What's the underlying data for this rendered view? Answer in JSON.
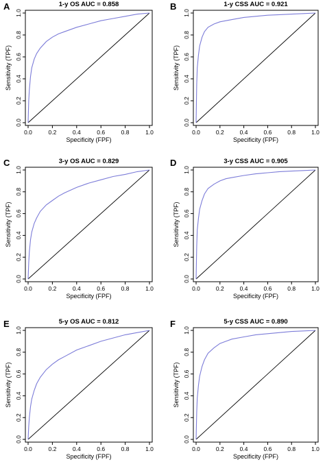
{
  "figure": {
    "curve_color": "#7b7bd8",
    "line_color": "#000000"
  },
  "chart_data": [
    {
      "type": "line",
      "panel": "A",
      "title": "1-y OS AUC = 0.858",
      "xlabel": "Specificity (FPF)",
      "ylabel": "Sensitivity (TPF)",
      "xlim": [
        0,
        1
      ],
      "ylim": [
        0,
        1
      ],
      "xticks": [
        "0.0",
        "0.2",
        "0.4",
        "0.6",
        "0.8",
        "1.0"
      ],
      "yticks": [
        "0.0",
        "0.2",
        "0.4",
        "0.6",
        "0.8",
        "1.0"
      ],
      "grid": false,
      "x": [
        0,
        0.005,
        0.01,
        0.02,
        0.03,
        0.05,
        0.07,
        0.1,
        0.15,
        0.2,
        0.25,
        0.3,
        0.4,
        0.5,
        0.6,
        0.7,
        0.8,
        0.9,
        1.0
      ],
      "y": [
        0,
        0.2,
        0.3,
        0.42,
        0.5,
        0.58,
        0.63,
        0.68,
        0.74,
        0.78,
        0.81,
        0.83,
        0.87,
        0.9,
        0.93,
        0.95,
        0.97,
        0.99,
        1.0
      ],
      "reference_line": [
        [
          0,
          0
        ],
        [
          1,
          1
        ]
      ]
    },
    {
      "type": "line",
      "panel": "B",
      "title": "1-y CSS AUC = 0.921",
      "xlabel": "Specificity (FPF)",
      "ylabel": "Sensitivity (TPF)",
      "xlim": [
        0,
        1
      ],
      "ylim": [
        0,
        1
      ],
      "xticks": [
        "0.0",
        "0.2",
        "0.4",
        "0.6",
        "0.8",
        "1.0"
      ],
      "yticks": [
        "0.0",
        "0.2",
        "0.4",
        "0.6",
        "0.8",
        "1.0"
      ],
      "grid": false,
      "x": [
        0,
        0.005,
        0.01,
        0.02,
        0.03,
        0.05,
        0.07,
        0.1,
        0.15,
        0.2,
        0.25,
        0.3,
        0.4,
        0.5,
        0.6,
        0.7,
        0.8,
        0.9,
        1.0
      ],
      "y": [
        0,
        0.35,
        0.5,
        0.62,
        0.7,
        0.78,
        0.83,
        0.87,
        0.9,
        0.92,
        0.93,
        0.94,
        0.96,
        0.97,
        0.98,
        0.985,
        0.99,
        0.995,
        1.0
      ],
      "reference_line": [
        [
          0,
          0
        ],
        [
          1,
          1
        ]
      ]
    },
    {
      "type": "line",
      "panel": "C",
      "title": "3-y OS AUC = 0.829",
      "xlabel": "Specificity (FPF)",
      "ylabel": "Sensitivity (TPF)",
      "xlim": [
        0,
        1
      ],
      "ylim": [
        0,
        1
      ],
      "xticks": [
        "0.0",
        "0.2",
        "0.4",
        "0.6",
        "0.8",
        "1.0"
      ],
      "yticks": [
        "0.0",
        "0.2",
        "0.4",
        "0.6",
        "0.8",
        "1.0"
      ],
      "grid": false,
      "x": [
        0,
        0.005,
        0.01,
        0.02,
        0.03,
        0.05,
        0.07,
        0.1,
        0.15,
        0.2,
        0.25,
        0.3,
        0.4,
        0.5,
        0.6,
        0.7,
        0.8,
        0.9,
        1.0
      ],
      "y": [
        0,
        0.15,
        0.25,
        0.36,
        0.43,
        0.51,
        0.56,
        0.62,
        0.68,
        0.72,
        0.76,
        0.79,
        0.84,
        0.88,
        0.91,
        0.94,
        0.96,
        0.985,
        1.0
      ],
      "reference_line": [
        [
          0,
          0
        ],
        [
          1,
          1
        ]
      ]
    },
    {
      "type": "line",
      "panel": "D",
      "title": "3-y CSS AUC = 0.905",
      "xlabel": "Specificity (FPF)",
      "ylabel": "Sensitivity (TPF)",
      "xlim": [
        0,
        1
      ],
      "ylim": [
        0,
        1
      ],
      "xticks": [
        "0.0",
        "0.2",
        "0.4",
        "0.6",
        "0.8",
        "1.0"
      ],
      "yticks": [
        "0.0",
        "0.2",
        "0.4",
        "0.6",
        "0.8",
        "1.0"
      ],
      "grid": false,
      "x": [
        0,
        0.005,
        0.01,
        0.02,
        0.03,
        0.05,
        0.07,
        0.1,
        0.15,
        0.2,
        0.25,
        0.3,
        0.4,
        0.5,
        0.6,
        0.7,
        0.8,
        0.9,
        1.0
      ],
      "y": [
        0,
        0.3,
        0.45,
        0.56,
        0.64,
        0.72,
        0.78,
        0.83,
        0.87,
        0.9,
        0.92,
        0.93,
        0.95,
        0.965,
        0.975,
        0.985,
        0.99,
        0.995,
        1.0
      ],
      "reference_line": [
        [
          0,
          0
        ],
        [
          1,
          1
        ]
      ]
    },
    {
      "type": "line",
      "panel": "E",
      "title": "5-y OS AUC = 0.812",
      "xlabel": "Specificity (FPF)",
      "ylabel": "Sensitivity (TPF)",
      "xlim": [
        0,
        1
      ],
      "ylim": [
        0,
        1
      ],
      "xticks": [
        "0.0",
        "0.2",
        "0.4",
        "0.6",
        "0.8",
        "1.0"
      ],
      "yticks": [
        "0.0",
        "0.2",
        "0.4",
        "0.6",
        "0.8",
        "1.0"
      ],
      "grid": false,
      "x": [
        0,
        0.005,
        0.01,
        0.02,
        0.03,
        0.05,
        0.07,
        0.1,
        0.15,
        0.2,
        0.25,
        0.3,
        0.4,
        0.5,
        0.6,
        0.7,
        0.8,
        0.9,
        1.0
      ],
      "y": [
        0,
        0.12,
        0.2,
        0.3,
        0.37,
        0.45,
        0.51,
        0.57,
        0.64,
        0.69,
        0.73,
        0.76,
        0.82,
        0.86,
        0.9,
        0.93,
        0.96,
        0.98,
        1.0
      ],
      "reference_line": [
        [
          0,
          0
        ],
        [
          1,
          1
        ]
      ]
    },
    {
      "type": "line",
      "panel": "F",
      "title": "5-y CSS AUC = 0.890",
      "xlabel": "Specificity (FPF)",
      "ylabel": "Sensitivity (TPF)",
      "xlim": [
        0,
        1
      ],
      "ylim": [
        0,
        1
      ],
      "xticks": [
        "0.0",
        "0.2",
        "0.4",
        "0.6",
        "0.8",
        "1.0"
      ],
      "yticks": [
        "0.0",
        "0.2",
        "0.4",
        "0.6",
        "0.8",
        "1.0"
      ],
      "grid": false,
      "x": [
        0,
        0.005,
        0.01,
        0.02,
        0.03,
        0.05,
        0.07,
        0.1,
        0.15,
        0.2,
        0.25,
        0.3,
        0.4,
        0.5,
        0.6,
        0.7,
        0.8,
        0.9,
        1.0
      ],
      "y": [
        0,
        0.25,
        0.38,
        0.5,
        0.58,
        0.67,
        0.73,
        0.79,
        0.84,
        0.88,
        0.9,
        0.92,
        0.94,
        0.96,
        0.97,
        0.98,
        0.99,
        0.995,
        1.0
      ],
      "reference_line": [
        [
          0,
          0
        ],
        [
          1,
          1
        ]
      ]
    }
  ]
}
